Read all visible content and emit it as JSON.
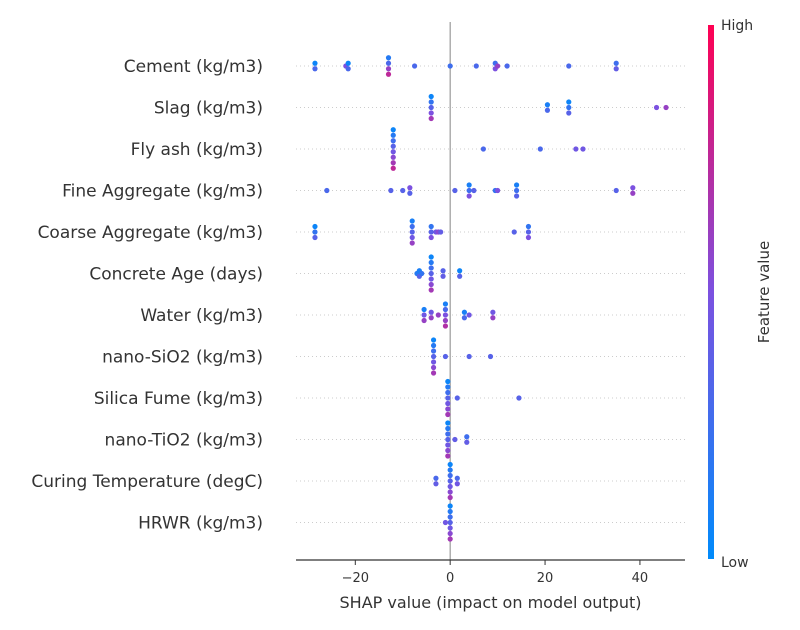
{
  "chart_data": {
    "type": "scatter",
    "title": "",
    "xlabel": "SHAP value (impact on model output)",
    "xlim": [
      -32.5,
      49.5
    ],
    "xticks": [
      -20,
      0,
      20,
      40
    ],
    "xtick_labels": [
      "−20",
      "0",
      "20",
      "40"
    ],
    "colorbar": {
      "label": "Feature value",
      "high": "High",
      "low": "Low",
      "colors": [
        "#008bfb",
        "#ff0052"
      ]
    },
    "features": [
      {
        "name": "Cement (kg/m3)",
        "points": [
          [
            -28.5,
            0.05
          ],
          [
            -28.5,
            0.3
          ],
          [
            -22,
            0.5
          ],
          [
            -21.5,
            0.05
          ],
          [
            -21.5,
            0.3
          ],
          [
            -13,
            0.15
          ],
          [
            -13,
            0.3
          ],
          [
            -13,
            0.6
          ],
          [
            -13,
            0.75
          ],
          [
            -7.5,
            0.3
          ],
          [
            0,
            0.25
          ],
          [
            5.5,
            0.3
          ],
          [
            9.5,
            0.25
          ],
          [
            9.5,
            0.5
          ],
          [
            10,
            0.6
          ],
          [
            12,
            0.3
          ],
          [
            25,
            0.3
          ],
          [
            35,
            0.25
          ],
          [
            35,
            0.4
          ]
        ]
      },
      {
        "name": "Slag (kg/m3)",
        "points": [
          [
            -4,
            0.05
          ],
          [
            -4,
            0.2
          ],
          [
            -4,
            0.35
          ],
          [
            -4,
            0.5
          ],
          [
            -4,
            0.65
          ],
          [
            20.5,
            0.1
          ],
          [
            20.5,
            0.3
          ],
          [
            25,
            0.05
          ],
          [
            25,
            0.2
          ],
          [
            25,
            0.35
          ],
          [
            43.5,
            0.5
          ],
          [
            45.5,
            0.6
          ]
        ]
      },
      {
        "name": "Fly ash (kg/m3)",
        "points": [
          [
            -12,
            0.05
          ],
          [
            -12,
            0.15
          ],
          [
            -12,
            0.25
          ],
          [
            -12,
            0.35
          ],
          [
            -12,
            0.45
          ],
          [
            -12,
            0.55
          ],
          [
            -12,
            0.65
          ],
          [
            -12,
            0.75
          ],
          [
            7,
            0.3
          ],
          [
            19,
            0.3
          ],
          [
            26.5,
            0.45
          ],
          [
            28,
            0.45
          ]
        ]
      },
      {
        "name": "Fine Aggregate (kg/m3)",
        "points": [
          [
            -26,
            0.3
          ],
          [
            -12.5,
            0.35
          ],
          [
            -10,
            0.35
          ],
          [
            -8.5,
            0.5
          ],
          [
            -8.5,
            0.35
          ],
          [
            1,
            0.35
          ],
          [
            4,
            0.1
          ],
          [
            4,
            0.25
          ],
          [
            4,
            0.5
          ],
          [
            5,
            0.35
          ],
          [
            9.5,
            0.2
          ],
          [
            10,
            0.5
          ],
          [
            14,
            0.1
          ],
          [
            14,
            0.25
          ],
          [
            14,
            0.35
          ],
          [
            35,
            0.35
          ],
          [
            38.5,
            0.5
          ],
          [
            38.5,
            0.6
          ]
        ]
      },
      {
        "name": "Coarse Aggregate (kg/m3)",
        "points": [
          [
            -28.5,
            0.05
          ],
          [
            -28.5,
            0.2
          ],
          [
            -28.5,
            0.35
          ],
          [
            -8,
            0.1
          ],
          [
            -8,
            0.25
          ],
          [
            -8,
            0.35
          ],
          [
            -8,
            0.45
          ],
          [
            -8,
            0.6
          ],
          [
            -4,
            0.2
          ],
          [
            -4,
            0.35
          ],
          [
            -4,
            0.5
          ],
          [
            -3,
            0.45
          ],
          [
            -2.5,
            0.55
          ],
          [
            -2,
            0.4
          ],
          [
            13.5,
            0.35
          ],
          [
            16.5,
            0.2
          ],
          [
            16.5,
            0.35
          ],
          [
            16.5,
            0.5
          ]
        ]
      },
      {
        "name": "Concrete Age (days)",
        "points": [
          [
            -7,
            0.15
          ],
          [
            -6.5,
            0.1
          ],
          [
            -6.5,
            0.35
          ],
          [
            -6,
            0.2
          ],
          [
            -4,
            0.05
          ],
          [
            -4,
            0.15
          ],
          [
            -4,
            0.25
          ],
          [
            -4,
            0.35
          ],
          [
            -4,
            0.45
          ],
          [
            -4,
            0.55
          ],
          [
            -4,
            0.65
          ],
          [
            -1.5,
            0.35
          ],
          [
            -1.5,
            0.4
          ],
          [
            2,
            0.05
          ],
          [
            2,
            0.35
          ]
        ]
      },
      {
        "name": "Water (kg/m3)",
        "points": [
          [
            -5.5,
            0.1
          ],
          [
            -5.5,
            0.45
          ],
          [
            -5.5,
            0.6
          ],
          [
            -4,
            0.45
          ],
          [
            -4,
            0.6
          ],
          [
            -2.5,
            0.6
          ],
          [
            -1,
            0.1
          ],
          [
            -1,
            0.3
          ],
          [
            -1,
            0.5
          ],
          [
            -1,
            0.6
          ],
          [
            -1,
            0.7
          ],
          [
            3,
            0.1
          ],
          [
            3,
            0.3
          ],
          [
            4,
            0.45
          ],
          [
            9,
            0.45
          ],
          [
            9,
            0.6
          ]
        ]
      },
      {
        "name": "nano-SiO2 (kg/m3)",
        "points": [
          [
            -3.5,
            0.05
          ],
          [
            -3.5,
            0.15
          ],
          [
            -3.5,
            0.25
          ],
          [
            -3.5,
            0.35
          ],
          [
            -3.5,
            0.45
          ],
          [
            -3.5,
            0.55
          ],
          [
            -3.5,
            0.65
          ],
          [
            -1,
            0.35
          ],
          [
            4,
            0.35
          ],
          [
            8.5,
            0.35
          ]
        ]
      },
      {
        "name": "Silica Fume (kg/m3)",
        "points": [
          [
            -0.5,
            0.05
          ],
          [
            -0.5,
            0.15
          ],
          [
            -0.5,
            0.25
          ],
          [
            -0.5,
            0.35
          ],
          [
            -0.5,
            0.45
          ],
          [
            -0.5,
            0.55
          ],
          [
            -0.5,
            0.65
          ],
          [
            1.5,
            0.35
          ],
          [
            14.5,
            0.35
          ]
        ]
      },
      {
        "name": "nano-TiO2 (kg/m3)",
        "points": [
          [
            -0.5,
            0.05
          ],
          [
            -0.5,
            0.15
          ],
          [
            -0.5,
            0.25
          ],
          [
            -0.5,
            0.35
          ],
          [
            -0.5,
            0.45
          ],
          [
            -0.5,
            0.55
          ],
          [
            -0.5,
            0.65
          ],
          [
            1,
            0.4
          ],
          [
            3.5,
            0.25
          ],
          [
            3.5,
            0.4
          ]
        ]
      },
      {
        "name": "Curing Temperature (degC)",
        "points": [
          [
            -3,
            0.3
          ],
          [
            -3,
            0.4
          ],
          [
            0,
            0.05
          ],
          [
            0,
            0.15
          ],
          [
            0,
            0.25
          ],
          [
            0,
            0.35
          ],
          [
            0,
            0.45
          ],
          [
            0,
            0.55
          ],
          [
            0,
            0.65
          ],
          [
            1.5,
            0.3
          ],
          [
            1.5,
            0.45
          ]
        ]
      },
      {
        "name": "HRWR (kg/m3)",
        "points": [
          [
            0,
            0.05
          ],
          [
            0,
            0.15
          ],
          [
            0,
            0.25
          ],
          [
            0,
            0.35
          ],
          [
            0,
            0.45
          ],
          [
            0,
            0.55
          ],
          [
            0,
            0.65
          ],
          [
            -1,
            0.45
          ]
        ]
      }
    ]
  }
}
